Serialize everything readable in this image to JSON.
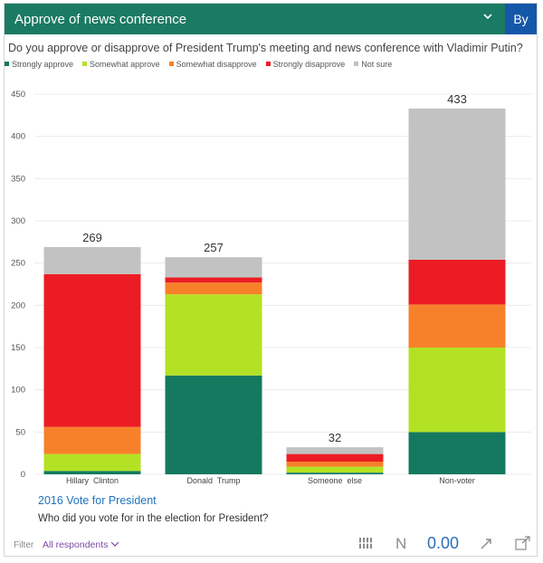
{
  "header": {
    "title": "Approve of news conference",
    "by_label": "By"
  },
  "question": "Do you approve or disapprove of President Trump's meeting and news conference with Vladimir Putin?",
  "footer": {
    "xtitle": "2016 Vote for President",
    "xdesc": "Who did you vote for in the election for President?",
    "filter_label": "Filter",
    "filter_value": "All respondents",
    "decimals": "0.00",
    "n_label": "N"
  },
  "colors": {
    "strongly_approve": "#14795f",
    "somewhat_approve": "#b3e224",
    "somewhat_disapprove": "#f7812a",
    "strongly_disapprove": "#ec1c24",
    "not_sure": "#c2c2c2",
    "header": "#1a7a63",
    "by_button": "#1457a8"
  },
  "chart_data": {
    "type": "bar",
    "stacked": true,
    "categories": [
      "Hillary  Clinton",
      "Donald  Trump",
      "Someone  else",
      "Non-voter"
    ],
    "series": [
      {
        "name": "Strongly approve",
        "values": [
          4,
          117,
          2,
          50
        ]
      },
      {
        "name": "Somewhat approve",
        "values": [
          20,
          96,
          7,
          100
        ]
      },
      {
        "name": "Somewhat disapprove",
        "values": [
          32,
          14,
          6,
          51
        ]
      },
      {
        "name": "Strongly disapprove",
        "values": [
          181,
          6,
          9,
          53
        ]
      },
      {
        "name": "Not sure",
        "values": [
          32,
          24,
          8,
          179
        ]
      }
    ],
    "totals": [
      269,
      257,
      32,
      433
    ],
    "ylim": [
      0,
      450
    ],
    "yticks": [
      "0",
      "50",
      "100",
      "150",
      "200",
      "250",
      "300",
      "350",
      "400",
      "450"
    ],
    "grid": true,
    "legend": "top-left"
  }
}
